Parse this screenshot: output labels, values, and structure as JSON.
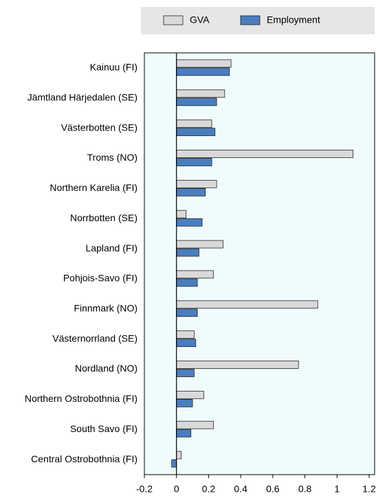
{
  "chart_data": {
    "type": "bar",
    "orientation": "horizontal",
    "categories": [
      "Kainuu (FI)",
      "Jämtland Härjedalen (SE)",
      "Västerbotten (SE)",
      "Troms (NO)",
      "Northern Karelia (FI)",
      "Norrbotten (SE)",
      "Lapland (FI)",
      "Pohjois-Savo (FI)",
      "Finnmark (NO)",
      "Västernorrland (SE)",
      "Nordland (NO)",
      "Northern Ostrobothnia (FI)",
      "South Savo (FI)",
      "Central Ostrobothnia (FI)"
    ],
    "series": [
      {
        "name": "GVA",
        "color": "#d9d9d9",
        "values": [
          0.34,
          0.3,
          0.22,
          1.1,
          0.25,
          0.06,
          0.29,
          0.23,
          0.88,
          0.11,
          0.76,
          0.17,
          0.23,
          0.03
        ]
      },
      {
        "name": "Employment",
        "color": "#4a7ebf",
        "values": [
          0.33,
          0.25,
          0.24,
          0.22,
          0.18,
          0.16,
          0.14,
          0.13,
          0.13,
          0.12,
          0.11,
          0.1,
          0.09,
          -0.03
        ]
      }
    ],
    "xlim": [
      -0.2,
      1.2
    ],
    "xticks": [
      -0.2,
      0,
      0.2,
      0.4,
      0.6,
      0.8,
      1,
      1.2
    ],
    "grid": false,
    "legend": "top"
  }
}
